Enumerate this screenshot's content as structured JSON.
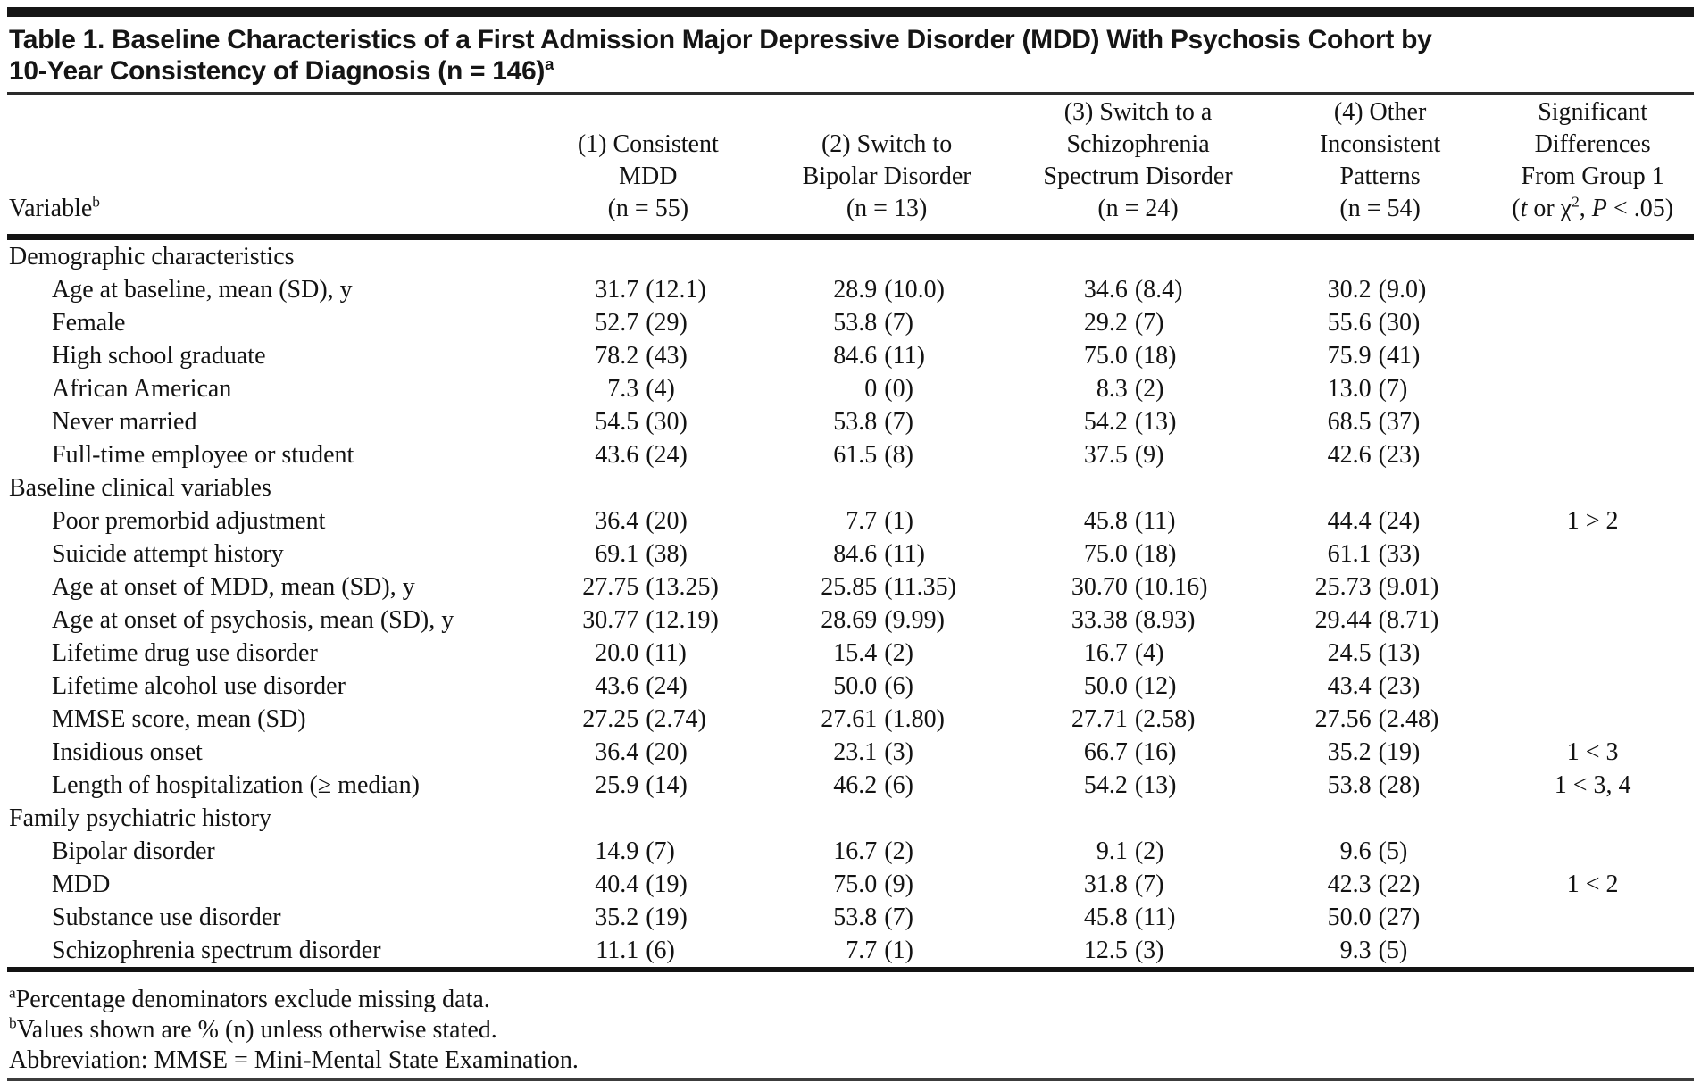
{
  "title": {
    "lines": [
      "Table 1. Baseline Characteristics of a First Admission Major Depressive Disorder (MDD) With Psychosis Cohort by",
      "10-Year Consistency of Diagnosis (n = 146)"
    ],
    "sup": "a"
  },
  "table": {
    "variable_header": {
      "label": "Variable",
      "sup": "b"
    },
    "columns": [
      {
        "lines": [
          "(1) Consistent",
          "MDD",
          "(n = 55)"
        ]
      },
      {
        "lines": [
          "(2) Switch to",
          "Bipolar Disorder",
          "(n = 13)"
        ]
      },
      {
        "lines": [
          "(3) Switch to a",
          "Schizophrenia",
          "Spectrum Disorder",
          "(n = 24)"
        ]
      },
      {
        "lines": [
          "(4) Other",
          "Inconsistent",
          "Patterns",
          "(n = 54)"
        ]
      },
      {
        "lines": [
          "Significant",
          "Differences",
          "From Group 1"
        ],
        "last_line_parts": [
          {
            "t": "("
          },
          {
            "t": "t",
            "it": true
          },
          {
            "t": " or χ"
          },
          {
            "t": "2",
            "sup": true
          },
          {
            "t": ", "
          },
          {
            "t": "P",
            "it": true
          },
          {
            "t": " < .05)"
          }
        ]
      }
    ],
    "sections": [
      {
        "label": "Demographic characteristics",
        "rows": [
          {
            "label": "Age at baseline, mean (SD), y",
            "values": [
              [
                "31.7",
                "(12.1)"
              ],
              [
                "28.9",
                "(10.0)"
              ],
              [
                "34.6",
                "(8.4)"
              ],
              [
                "30.2",
                "(9.0)"
              ]
            ],
            "sig": ""
          },
          {
            "label": "Female",
            "values": [
              [
                "52.7",
                "(29)"
              ],
              [
                "53.8",
                "(7)"
              ],
              [
                "29.2",
                "(7)"
              ],
              [
                "55.6",
                "(30)"
              ]
            ],
            "sig": ""
          },
          {
            "label": "High school graduate",
            "values": [
              [
                "78.2",
                "(43)"
              ],
              [
                "84.6",
                "(11)"
              ],
              [
                "75.0",
                "(18)"
              ],
              [
                "75.9",
                "(41)"
              ]
            ],
            "sig": ""
          },
          {
            "label": "African American",
            "values": [
              [
                "7.3",
                "(4)"
              ],
              [
                "0",
                "(0)"
              ],
              [
                "8.3",
                "(2)"
              ],
              [
                "13.0",
                "(7)"
              ]
            ],
            "sig": ""
          },
          {
            "label": "Never married",
            "values": [
              [
                "54.5",
                "(30)"
              ],
              [
                "53.8",
                "(7)"
              ],
              [
                "54.2",
                "(13)"
              ],
              [
                "68.5",
                "(37)"
              ]
            ],
            "sig": ""
          },
          {
            "label": "Full-time employee or student",
            "values": [
              [
                "43.6",
                "(24)"
              ],
              [
                "61.5",
                "(8)"
              ],
              [
                "37.5",
                "(9)"
              ],
              [
                "42.6",
                "(23)"
              ]
            ],
            "sig": ""
          }
        ]
      },
      {
        "label": "Baseline clinical variables",
        "rows": [
          {
            "label": "Poor premorbid adjustment",
            "values": [
              [
                "36.4",
                "(20)"
              ],
              [
                "7.7",
                "(1)"
              ],
              [
                "45.8",
                "(11)"
              ],
              [
                "44.4",
                "(24)"
              ]
            ],
            "sig": "1 > 2"
          },
          {
            "label": "Suicide attempt history",
            "values": [
              [
                "69.1",
                "(38)"
              ],
              [
                "84.6",
                "(11)"
              ],
              [
                "75.0",
                "(18)"
              ],
              [
                "61.1",
                "(33)"
              ]
            ],
            "sig": ""
          },
          {
            "label": "Age at onset of MDD, mean (SD), y",
            "values": [
              [
                "27.75",
                "(13.25)"
              ],
              [
                "25.85",
                "(11.35)"
              ],
              [
                "30.70",
                "(10.16)"
              ],
              [
                "25.73",
                "(9.01)"
              ]
            ],
            "sig": ""
          },
          {
            "label": "Age at onset of psychosis, mean (SD), y",
            "values": [
              [
                "30.77",
                "(12.19)"
              ],
              [
                "28.69",
                "(9.99)"
              ],
              [
                "33.38",
                "(8.93)"
              ],
              [
                "29.44",
                "(8.71)"
              ]
            ],
            "sig": ""
          },
          {
            "label": "Lifetime drug use disorder",
            "values": [
              [
                "20.0",
                "(11)"
              ],
              [
                "15.4",
                "(2)"
              ],
              [
                "16.7",
                "(4)"
              ],
              [
                "24.5",
                "(13)"
              ]
            ],
            "sig": ""
          },
          {
            "label": "Lifetime alcohol use disorder",
            "values": [
              [
                "43.6",
                "(24)"
              ],
              [
                "50.0",
                "(6)"
              ],
              [
                "50.0",
                "(12)"
              ],
              [
                "43.4",
                "(23)"
              ]
            ],
            "sig": ""
          },
          {
            "label": "MMSE score, mean (SD)",
            "values": [
              [
                "27.25",
                "(2.74)"
              ],
              [
                "27.61",
                "(1.80)"
              ],
              [
                "27.71",
                "(2.58)"
              ],
              [
                "27.56",
                "(2.48)"
              ]
            ],
            "sig": ""
          },
          {
            "label": "Insidious onset",
            "values": [
              [
                "36.4",
                "(20)"
              ],
              [
                "23.1",
                "(3)"
              ],
              [
                "66.7",
                "(16)"
              ],
              [
                "35.2",
                "(19)"
              ]
            ],
            "sig": "1 < 3"
          },
          {
            "label": "Length of hospitalization (≥ median)",
            "values": [
              [
                "25.9",
                "(14)"
              ],
              [
                "46.2",
                "(6)"
              ],
              [
                "54.2",
                "(13)"
              ],
              [
                "53.8",
                "(28)"
              ]
            ],
            "sig": "1 < 3, 4"
          }
        ]
      },
      {
        "label": "Family psychiatric history",
        "rows": [
          {
            "label": "Bipolar disorder",
            "values": [
              [
                "14.9",
                "(7)"
              ],
              [
                "16.7",
                "(2)"
              ],
              [
                "9.1",
                "(2)"
              ],
              [
                "9.6",
                "(5)"
              ]
            ],
            "sig": ""
          },
          {
            "label": "MDD",
            "values": [
              [
                "40.4",
                "(19)"
              ],
              [
                "75.0",
                "(9)"
              ],
              [
                "31.8",
                "(7)"
              ],
              [
                "42.3",
                "(22)"
              ]
            ],
            "sig": "1 < 2"
          },
          {
            "label": "Substance use disorder",
            "values": [
              [
                "35.2",
                "(19)"
              ],
              [
                "53.8",
                "(7)"
              ],
              [
                "45.8",
                "(11)"
              ],
              [
                "50.0",
                "(27)"
              ]
            ],
            "sig": ""
          },
          {
            "label": "Schizophrenia spectrum disorder",
            "values": [
              [
                "11.1",
                "(6)"
              ],
              [
                "7.7",
                "(1)"
              ],
              [
                "12.5",
                "(3)"
              ],
              [
                "9.3",
                "(5)"
              ]
            ],
            "sig": ""
          }
        ]
      }
    ]
  },
  "footnotes": [
    {
      "sup": "a",
      "text": "Percentage denominators exclude missing data."
    },
    {
      "sup": "b",
      "text": "Values shown are % (n) unless otherwise stated."
    },
    {
      "sup": "",
      "text": "Abbreviation: MMSE = Mini-Mental State Examination."
    }
  ]
}
